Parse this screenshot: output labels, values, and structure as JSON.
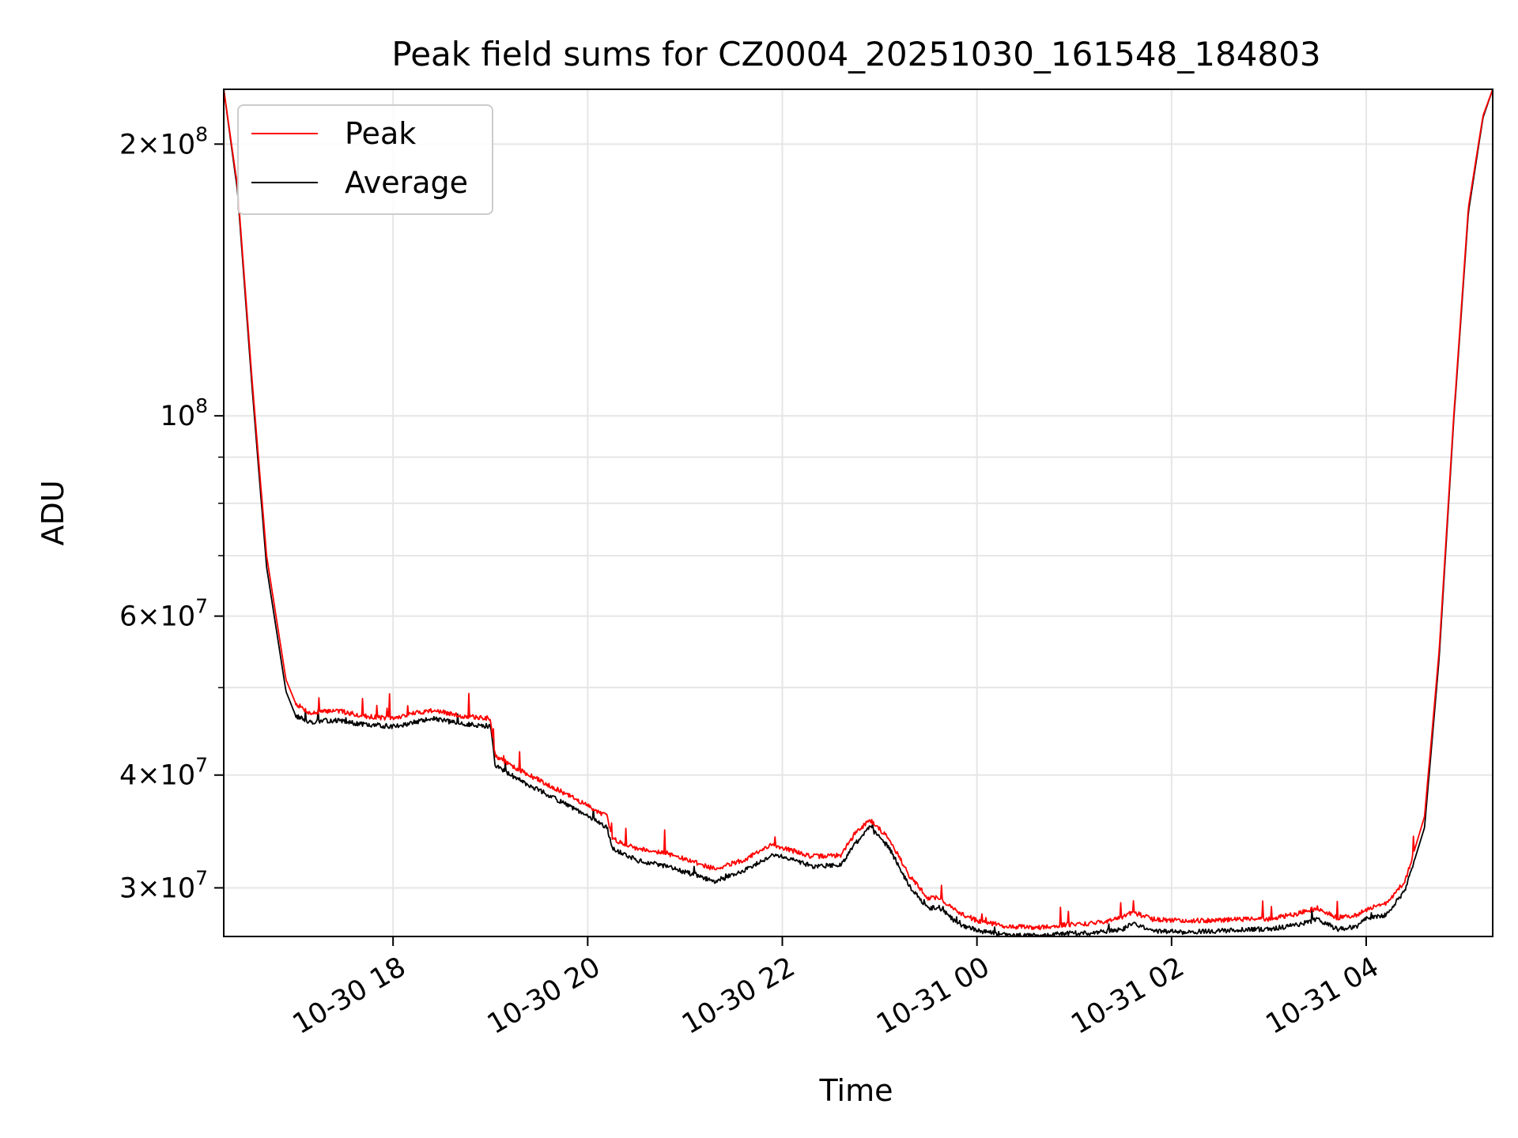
{
  "chart_data": {
    "type": "line",
    "title": "Peak field sums for CZ0004_20251030_161548_184803",
    "xlabel": "Time",
    "ylabel": "ADU",
    "yscale": "log",
    "xlim_hours": [
      16.26,
      29.3
    ],
    "ylim": [
      26500000,
      230000000
    ],
    "grid": true,
    "legend_position": "upper-left",
    "x_ticks": [
      {
        "label": "10-30 18",
        "hour": 18
      },
      {
        "label": "10-30 20",
        "hour": 20
      },
      {
        "label": "10-30 22",
        "hour": 22
      },
      {
        "label": "10-31 00",
        "hour": 24
      },
      {
        "label": "10-31 02",
        "hour": 26
      },
      {
        "label": "10-31 04",
        "hour": 28
      }
    ],
    "y_ticks": [
      {
        "value": 30000000,
        "base": "3×10",
        "exp": "7"
      },
      {
        "value": 40000000,
        "base": "4×10",
        "exp": "7"
      },
      {
        "value": 60000000,
        "base": "6×10",
        "exp": "7"
      },
      {
        "value": 100000000,
        "base": "10",
        "exp": "8"
      },
      {
        "value": 200000000,
        "base": "2×10",
        "exp": "8"
      }
    ],
    "y_minor_ticks": [
      50000000,
      70000000,
      80000000,
      90000000
    ],
    "series": [
      {
        "name": "Peak",
        "color": "#ff0000",
        "x_hours": [
          16.26,
          16.4,
          16.55,
          16.7,
          16.9,
          17.0,
          17.15,
          17.4,
          17.7,
          18.0,
          18.2,
          18.4,
          18.7,
          19.0,
          19.05,
          19.3,
          19.6,
          19.9,
          20.2,
          20.25,
          20.5,
          20.8,
          21.1,
          21.3,
          21.6,
          21.9,
          22.1,
          22.3,
          22.6,
          22.75,
          22.9,
          23.1,
          23.3,
          23.5,
          23.6,
          23.8,
          24.0,
          24.3,
          24.6,
          24.9,
          25.2,
          25.5,
          25.6,
          25.8,
          26.1,
          26.4,
          26.7,
          27.0,
          27.3,
          27.5,
          27.7,
          27.9,
          28.0,
          28.2,
          28.4,
          28.6,
          28.75,
          28.9,
          29.05,
          29.2,
          29.3
        ],
        "values": [
          230000000,
          180000000,
          110000000,
          70000000,
          51000000,
          48000000,
          46800000,
          47200000,
          46500000,
          46200000,
          46800000,
          47200000,
          46500000,
          46200000,
          42000000,
          40500000,
          39000000,
          37500000,
          36000000,
          34000000,
          33200000,
          32800000,
          32000000,
          31500000,
          32200000,
          33500000,
          33000000,
          32500000,
          32600000,
          34500000,
          35700000,
          34000000,
          31000000,
          29200000,
          29300000,
          28200000,
          27600000,
          27200000,
          27100000,
          27300000,
          27400000,
          27800000,
          28200000,
          27700000,
          27600000,
          27600000,
          27700000,
          27700000,
          28100000,
          28500000,
          27800000,
          28000000,
          28400000,
          28800000,
          30500000,
          36000000,
          55000000,
          100000000,
          170000000,
          215000000,
          230000000
        ]
      },
      {
        "name": "Average",
        "color": "#000000",
        "x_hours": [
          16.26,
          16.4,
          16.55,
          16.7,
          16.9,
          17.0,
          17.15,
          17.4,
          17.7,
          18.0,
          18.2,
          18.4,
          18.7,
          19.0,
          19.05,
          19.3,
          19.6,
          19.9,
          20.2,
          20.25,
          20.5,
          20.8,
          21.1,
          21.3,
          21.6,
          21.9,
          22.1,
          22.3,
          22.6,
          22.75,
          22.9,
          23.1,
          23.3,
          23.5,
          23.6,
          23.8,
          24.0,
          24.3,
          24.6,
          24.9,
          25.2,
          25.5,
          25.6,
          25.8,
          26.1,
          26.4,
          26.7,
          27.0,
          27.3,
          27.5,
          27.7,
          27.9,
          28.0,
          28.2,
          28.4,
          28.6,
          28.75,
          28.9,
          29.05,
          29.2,
          29.3
        ],
        "values": [
          230000000,
          178000000,
          108000000,
          68000000,
          49500000,
          46500000,
          45800000,
          46000000,
          45500000,
          45300000,
          45700000,
          46200000,
          45600000,
          45300000,
          41000000,
          39500000,
          38000000,
          36500000,
          35000000,
          33200000,
          32200000,
          31700000,
          31000000,
          30500000,
          31300000,
          32700000,
          32300000,
          31700000,
          31800000,
          33600000,
          35000000,
          33200000,
          30200000,
          28400000,
          28600000,
          27400000,
          26900000,
          26600000,
          26550000,
          26700000,
          26750000,
          27000000,
          27400000,
          26900000,
          26800000,
          26850000,
          26950000,
          27000000,
          27300000,
          27700000,
          27000000,
          27200000,
          27700000,
          28000000,
          29800000,
          35000000,
          54000000,
          99000000,
          168000000,
          214000000,
          230000000
        ]
      }
    ]
  }
}
